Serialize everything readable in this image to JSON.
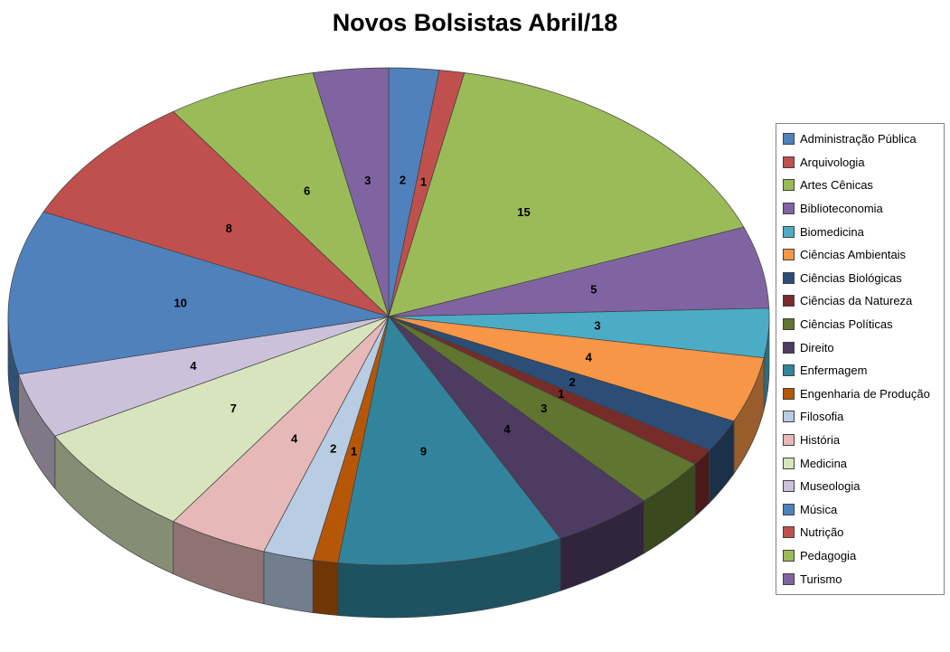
{
  "title": "Novos Bolsistas Abril/18",
  "chart_data": {
    "type": "pie",
    "style": "3d",
    "title": "Novos Bolsistas Abril/18",
    "legend_position": "right",
    "data_labels": "values",
    "start_angle_deg": 0,
    "direction": "clockwise",
    "total": 94,
    "categories": [
      "Administração Pública",
      "Arquivologia",
      "Artes Cênicas",
      "Biblioteconomia",
      "Biomedicina",
      "Ciências Ambientais",
      "Ciências Biológicas",
      "Ciências da Natureza",
      "Ciências Políticas",
      "Direito",
      "Enfermagem",
      "Engenharia de Produção",
      "Filosofia",
      "História",
      "Medicina",
      "Museologia",
      "Música",
      "Nutrição",
      "Pedagogia",
      "Turismo"
    ],
    "values": [
      2,
      1,
      15,
      5,
      3,
      4,
      2,
      1,
      3,
      4,
      9,
      1,
      2,
      4,
      7,
      4,
      10,
      8,
      6,
      3
    ],
    "colors": [
      "#4F81BD",
      "#C0504D",
      "#9BBB59",
      "#8064A2",
      "#4BACC6",
      "#F79646",
      "#2C4D75",
      "#772C2A",
      "#5F7530",
      "#4D3B62",
      "#31849B",
      "#B65708",
      "#B8CCE4",
      "#E6B9B8",
      "#D7E4BD",
      "#CCC1DA",
      "#4F81BD",
      "#C0504D",
      "#9BBB59",
      "#8064A2"
    ],
    "label_color": "#000000",
    "background": "#FFFFFF"
  }
}
